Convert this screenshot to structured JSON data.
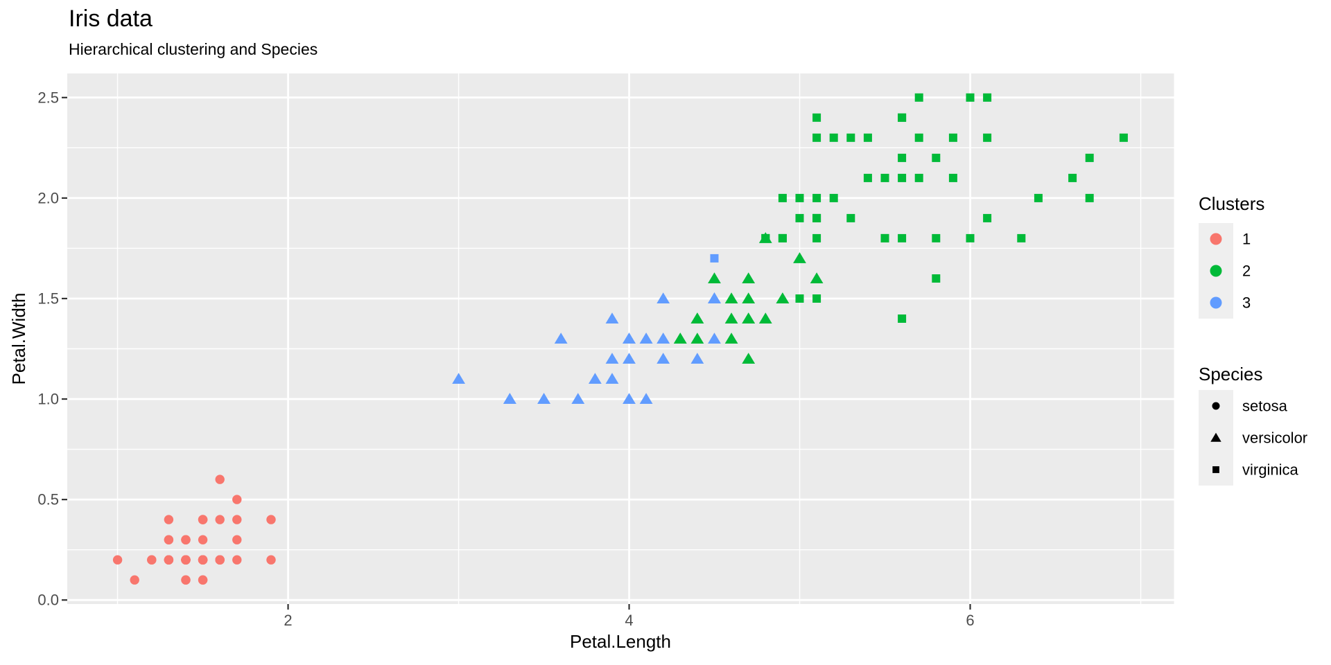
{
  "page": {
    "background": "#FFFFFF"
  },
  "chart_data": {
    "type": "scatter",
    "title": "Iris data",
    "subtitle": "Hierarchical clustering and Species",
    "xlabel": "Petal.Length",
    "ylabel": "Petal.Width",
    "xlim": [
      0.705,
      7.195
    ],
    "ylim": [
      -0.02,
      2.62
    ],
    "x_ticks": {
      "values": [
        2,
        4,
        6
      ],
      "labels": [
        "2",
        "4",
        "6"
      ],
      "minor": [
        1,
        3,
        5,
        7
      ]
    },
    "y_ticks": {
      "values": [
        0,
        0.5,
        1,
        1.5,
        2,
        2.5
      ],
      "labels": [
        "0.0",
        "0.5",
        "1.0",
        "1.5",
        "2.0",
        "2.5"
      ],
      "minor": [
        0.25,
        0.75,
        1.25,
        1.75,
        2.25
      ]
    },
    "grid": true,
    "legend_position": "right",
    "panel_bg": "#EBEBEB",
    "grid_color": "#FFFFFF",
    "tick_color": "#333333",
    "tick_label_color": "#4D4D4D",
    "legend_key_bg": "#EFEFEF",
    "cluster_colors": {
      "1": "#F8766D",
      "2": "#00BA38",
      "3": "#619CFF"
    },
    "species_shapes": {
      "setosa": "circle",
      "versicolor": "triangle",
      "virginica": "square"
    },
    "color_legend": {
      "title": "Clusters",
      "entries": [
        {
          "label": "1",
          "cluster": "1"
        },
        {
          "label": "2",
          "cluster": "2"
        },
        {
          "label": "3",
          "cluster": "3"
        }
      ]
    },
    "shape_legend": {
      "title": "Species",
      "entries": [
        {
          "label": "setosa",
          "shape": "circle"
        },
        {
          "label": "versicolor",
          "shape": "triangle"
        },
        {
          "label": "virginica",
          "shape": "square"
        }
      ]
    },
    "points": [
      [
        1.4,
        0.2,
        1,
        "setosa"
      ],
      [
        1.4,
        0.2,
        1,
        "setosa"
      ],
      [
        1.3,
        0.2,
        1,
        "setosa"
      ],
      [
        1.5,
        0.2,
        1,
        "setosa"
      ],
      [
        1.4,
        0.2,
        1,
        "setosa"
      ],
      [
        1.7,
        0.4,
        1,
        "setosa"
      ],
      [
        1.4,
        0.3,
        1,
        "setosa"
      ],
      [
        1.5,
        0.2,
        1,
        "setosa"
      ],
      [
        1.4,
        0.2,
        1,
        "setosa"
      ],
      [
        1.5,
        0.1,
        1,
        "setosa"
      ],
      [
        1.5,
        0.2,
        1,
        "setosa"
      ],
      [
        1.6,
        0.2,
        1,
        "setosa"
      ],
      [
        1.4,
        0.1,
        1,
        "setosa"
      ],
      [
        1.1,
        0.1,
        1,
        "setosa"
      ],
      [
        1.2,
        0.2,
        1,
        "setosa"
      ],
      [
        1.5,
        0.4,
        1,
        "setosa"
      ],
      [
        1.3,
        0.4,
        1,
        "setosa"
      ],
      [
        1.4,
        0.3,
        1,
        "setosa"
      ],
      [
        1.7,
        0.3,
        1,
        "setosa"
      ],
      [
        1.5,
        0.3,
        1,
        "setosa"
      ],
      [
        1.7,
        0.2,
        1,
        "setosa"
      ],
      [
        1.5,
        0.4,
        1,
        "setosa"
      ],
      [
        1.0,
        0.2,
        1,
        "setosa"
      ],
      [
        1.7,
        0.5,
        1,
        "setosa"
      ],
      [
        1.9,
        0.2,
        1,
        "setosa"
      ],
      [
        1.6,
        0.2,
        1,
        "setosa"
      ],
      [
        1.6,
        0.4,
        1,
        "setosa"
      ],
      [
        1.5,
        0.2,
        1,
        "setosa"
      ],
      [
        1.4,
        0.2,
        1,
        "setosa"
      ],
      [
        1.6,
        0.2,
        1,
        "setosa"
      ],
      [
        1.6,
        0.2,
        1,
        "setosa"
      ],
      [
        1.5,
        0.4,
        1,
        "setosa"
      ],
      [
        1.5,
        0.1,
        1,
        "setosa"
      ],
      [
        1.4,
        0.2,
        1,
        "setosa"
      ],
      [
        1.5,
        0.2,
        1,
        "setosa"
      ],
      [
        1.2,
        0.2,
        1,
        "setosa"
      ],
      [
        1.3,
        0.2,
        1,
        "setosa"
      ],
      [
        1.4,
        0.1,
        1,
        "setosa"
      ],
      [
        1.3,
        0.2,
        1,
        "setosa"
      ],
      [
        1.5,
        0.2,
        1,
        "setosa"
      ],
      [
        1.3,
        0.3,
        1,
        "setosa"
      ],
      [
        1.3,
        0.3,
        1,
        "setosa"
      ],
      [
        1.3,
        0.2,
        1,
        "setosa"
      ],
      [
        1.6,
        0.6,
        1,
        "setosa"
      ],
      [
        1.9,
        0.4,
        1,
        "setosa"
      ],
      [
        1.4,
        0.3,
        1,
        "setosa"
      ],
      [
        1.6,
        0.2,
        1,
        "setosa"
      ],
      [
        1.4,
        0.2,
        1,
        "setosa"
      ],
      [
        1.5,
        0.2,
        1,
        "setosa"
      ],
      [
        1.4,
        0.2,
        1,
        "setosa"
      ],
      [
        4.7,
        1.4,
        2,
        "versicolor"
      ],
      [
        4.5,
        1.5,
        3,
        "versicolor"
      ],
      [
        4.9,
        1.5,
        2,
        "versicolor"
      ],
      [
        4.0,
        1.3,
        3,
        "versicolor"
      ],
      [
        4.6,
        1.5,
        2,
        "versicolor"
      ],
      [
        4.5,
        1.3,
        3,
        "versicolor"
      ],
      [
        4.7,
        1.6,
        2,
        "versicolor"
      ],
      [
        3.3,
        1.0,
        3,
        "versicolor"
      ],
      [
        4.6,
        1.3,
        2,
        "versicolor"
      ],
      [
        3.9,
        1.4,
        3,
        "versicolor"
      ],
      [
        3.5,
        1.0,
        3,
        "versicolor"
      ],
      [
        4.2,
        1.5,
        3,
        "versicolor"
      ],
      [
        4.0,
        1.0,
        3,
        "versicolor"
      ],
      [
        4.7,
        1.4,
        2,
        "versicolor"
      ],
      [
        3.6,
        1.3,
        3,
        "versicolor"
      ],
      [
        4.4,
        1.4,
        2,
        "versicolor"
      ],
      [
        4.5,
        1.5,
        3,
        "versicolor"
      ],
      [
        4.1,
        1.0,
        3,
        "versicolor"
      ],
      [
        4.5,
        1.5,
        3,
        "versicolor"
      ],
      [
        3.9,
        1.1,
        3,
        "versicolor"
      ],
      [
        4.8,
        1.8,
        2,
        "versicolor"
      ],
      [
        4.0,
        1.3,
        3,
        "versicolor"
      ],
      [
        4.9,
        1.5,
        2,
        "versicolor"
      ],
      [
        4.7,
        1.2,
        2,
        "versicolor"
      ],
      [
        4.3,
        1.3,
        2,
        "versicolor"
      ],
      [
        4.4,
        1.4,
        2,
        "versicolor"
      ],
      [
        4.8,
        1.4,
        2,
        "versicolor"
      ],
      [
        5.0,
        1.7,
        2,
        "versicolor"
      ],
      [
        4.5,
        1.5,
        3,
        "versicolor"
      ],
      [
        3.5,
        1.0,
        3,
        "versicolor"
      ],
      [
        3.8,
        1.1,
        3,
        "versicolor"
      ],
      [
        3.7,
        1.0,
        3,
        "versicolor"
      ],
      [
        3.9,
        1.2,
        3,
        "versicolor"
      ],
      [
        5.1,
        1.6,
        2,
        "versicolor"
      ],
      [
        4.5,
        1.5,
        3,
        "versicolor"
      ],
      [
        4.5,
        1.6,
        2,
        "versicolor"
      ],
      [
        4.7,
        1.5,
        2,
        "versicolor"
      ],
      [
        4.4,
        1.3,
        2,
        "versicolor"
      ],
      [
        4.1,
        1.3,
        3,
        "versicolor"
      ],
      [
        4.0,
        1.3,
        3,
        "versicolor"
      ],
      [
        4.4,
        1.2,
        3,
        "versicolor"
      ],
      [
        4.6,
        1.4,
        2,
        "versicolor"
      ],
      [
        4.0,
        1.2,
        3,
        "versicolor"
      ],
      [
        3.3,
        1.0,
        3,
        "versicolor"
      ],
      [
        4.2,
        1.3,
        3,
        "versicolor"
      ],
      [
        4.2,
        1.2,
        3,
        "versicolor"
      ],
      [
        4.2,
        1.3,
        3,
        "versicolor"
      ],
      [
        4.3,
        1.3,
        2,
        "versicolor"
      ],
      [
        3.0,
        1.1,
        3,
        "versicolor"
      ],
      [
        4.1,
        1.3,
        3,
        "versicolor"
      ],
      [
        6.0,
        2.5,
        2,
        "virginica"
      ],
      [
        5.1,
        1.9,
        2,
        "virginica"
      ],
      [
        5.9,
        2.1,
        2,
        "virginica"
      ],
      [
        5.6,
        1.8,
        2,
        "virginica"
      ],
      [
        5.8,
        2.2,
        2,
        "virginica"
      ],
      [
        6.6,
        2.1,
        2,
        "virginica"
      ],
      [
        4.5,
        1.7,
        3,
        "virginica"
      ],
      [
        6.3,
        1.8,
        2,
        "virginica"
      ],
      [
        5.8,
        1.8,
        2,
        "virginica"
      ],
      [
        6.1,
        2.5,
        2,
        "virginica"
      ],
      [
        5.1,
        2.0,
        2,
        "virginica"
      ],
      [
        5.3,
        1.9,
        2,
        "virginica"
      ],
      [
        5.5,
        2.1,
        2,
        "virginica"
      ],
      [
        5.0,
        2.0,
        2,
        "virginica"
      ],
      [
        5.1,
        2.4,
        2,
        "virginica"
      ],
      [
        5.3,
        2.3,
        2,
        "virginica"
      ],
      [
        5.5,
        1.8,
        2,
        "virginica"
      ],
      [
        6.7,
        2.2,
        2,
        "virginica"
      ],
      [
        6.9,
        2.3,
        2,
        "virginica"
      ],
      [
        5.0,
        1.5,
        2,
        "virginica"
      ],
      [
        5.7,
        2.3,
        2,
        "virginica"
      ],
      [
        4.9,
        2.0,
        2,
        "virginica"
      ],
      [
        6.7,
        2.0,
        2,
        "virginica"
      ],
      [
        4.9,
        1.8,
        2,
        "virginica"
      ],
      [
        5.7,
        2.1,
        2,
        "virginica"
      ],
      [
        6.0,
        1.8,
        2,
        "virginica"
      ],
      [
        4.8,
        1.8,
        2,
        "virginica"
      ],
      [
        4.9,
        1.8,
        2,
        "virginica"
      ],
      [
        5.6,
        2.1,
        2,
        "virginica"
      ],
      [
        5.8,
        1.6,
        2,
        "virginica"
      ],
      [
        6.1,
        1.9,
        2,
        "virginica"
      ],
      [
        6.4,
        2.0,
        2,
        "virginica"
      ],
      [
        5.6,
        2.2,
        2,
        "virginica"
      ],
      [
        5.1,
        1.5,
        2,
        "virginica"
      ],
      [
        5.6,
        1.4,
        2,
        "virginica"
      ],
      [
        6.1,
        2.3,
        2,
        "virginica"
      ],
      [
        5.6,
        2.4,
        2,
        "virginica"
      ],
      [
        5.5,
        1.8,
        2,
        "virginica"
      ],
      [
        4.8,
        1.8,
        2,
        "virginica"
      ],
      [
        5.4,
        2.1,
        2,
        "virginica"
      ],
      [
        5.6,
        2.4,
        2,
        "virginica"
      ],
      [
        5.1,
        2.3,
        2,
        "virginica"
      ],
      [
        5.1,
        1.9,
        2,
        "virginica"
      ],
      [
        5.9,
        2.3,
        2,
        "virginica"
      ],
      [
        5.7,
        2.5,
        2,
        "virginica"
      ],
      [
        5.2,
        2.3,
        2,
        "virginica"
      ],
      [
        5.0,
        1.9,
        2,
        "virginica"
      ],
      [
        5.2,
        2.0,
        2,
        "virginica"
      ],
      [
        5.4,
        2.3,
        2,
        "virginica"
      ],
      [
        5.1,
        1.8,
        2,
        "virginica"
      ]
    ]
  }
}
